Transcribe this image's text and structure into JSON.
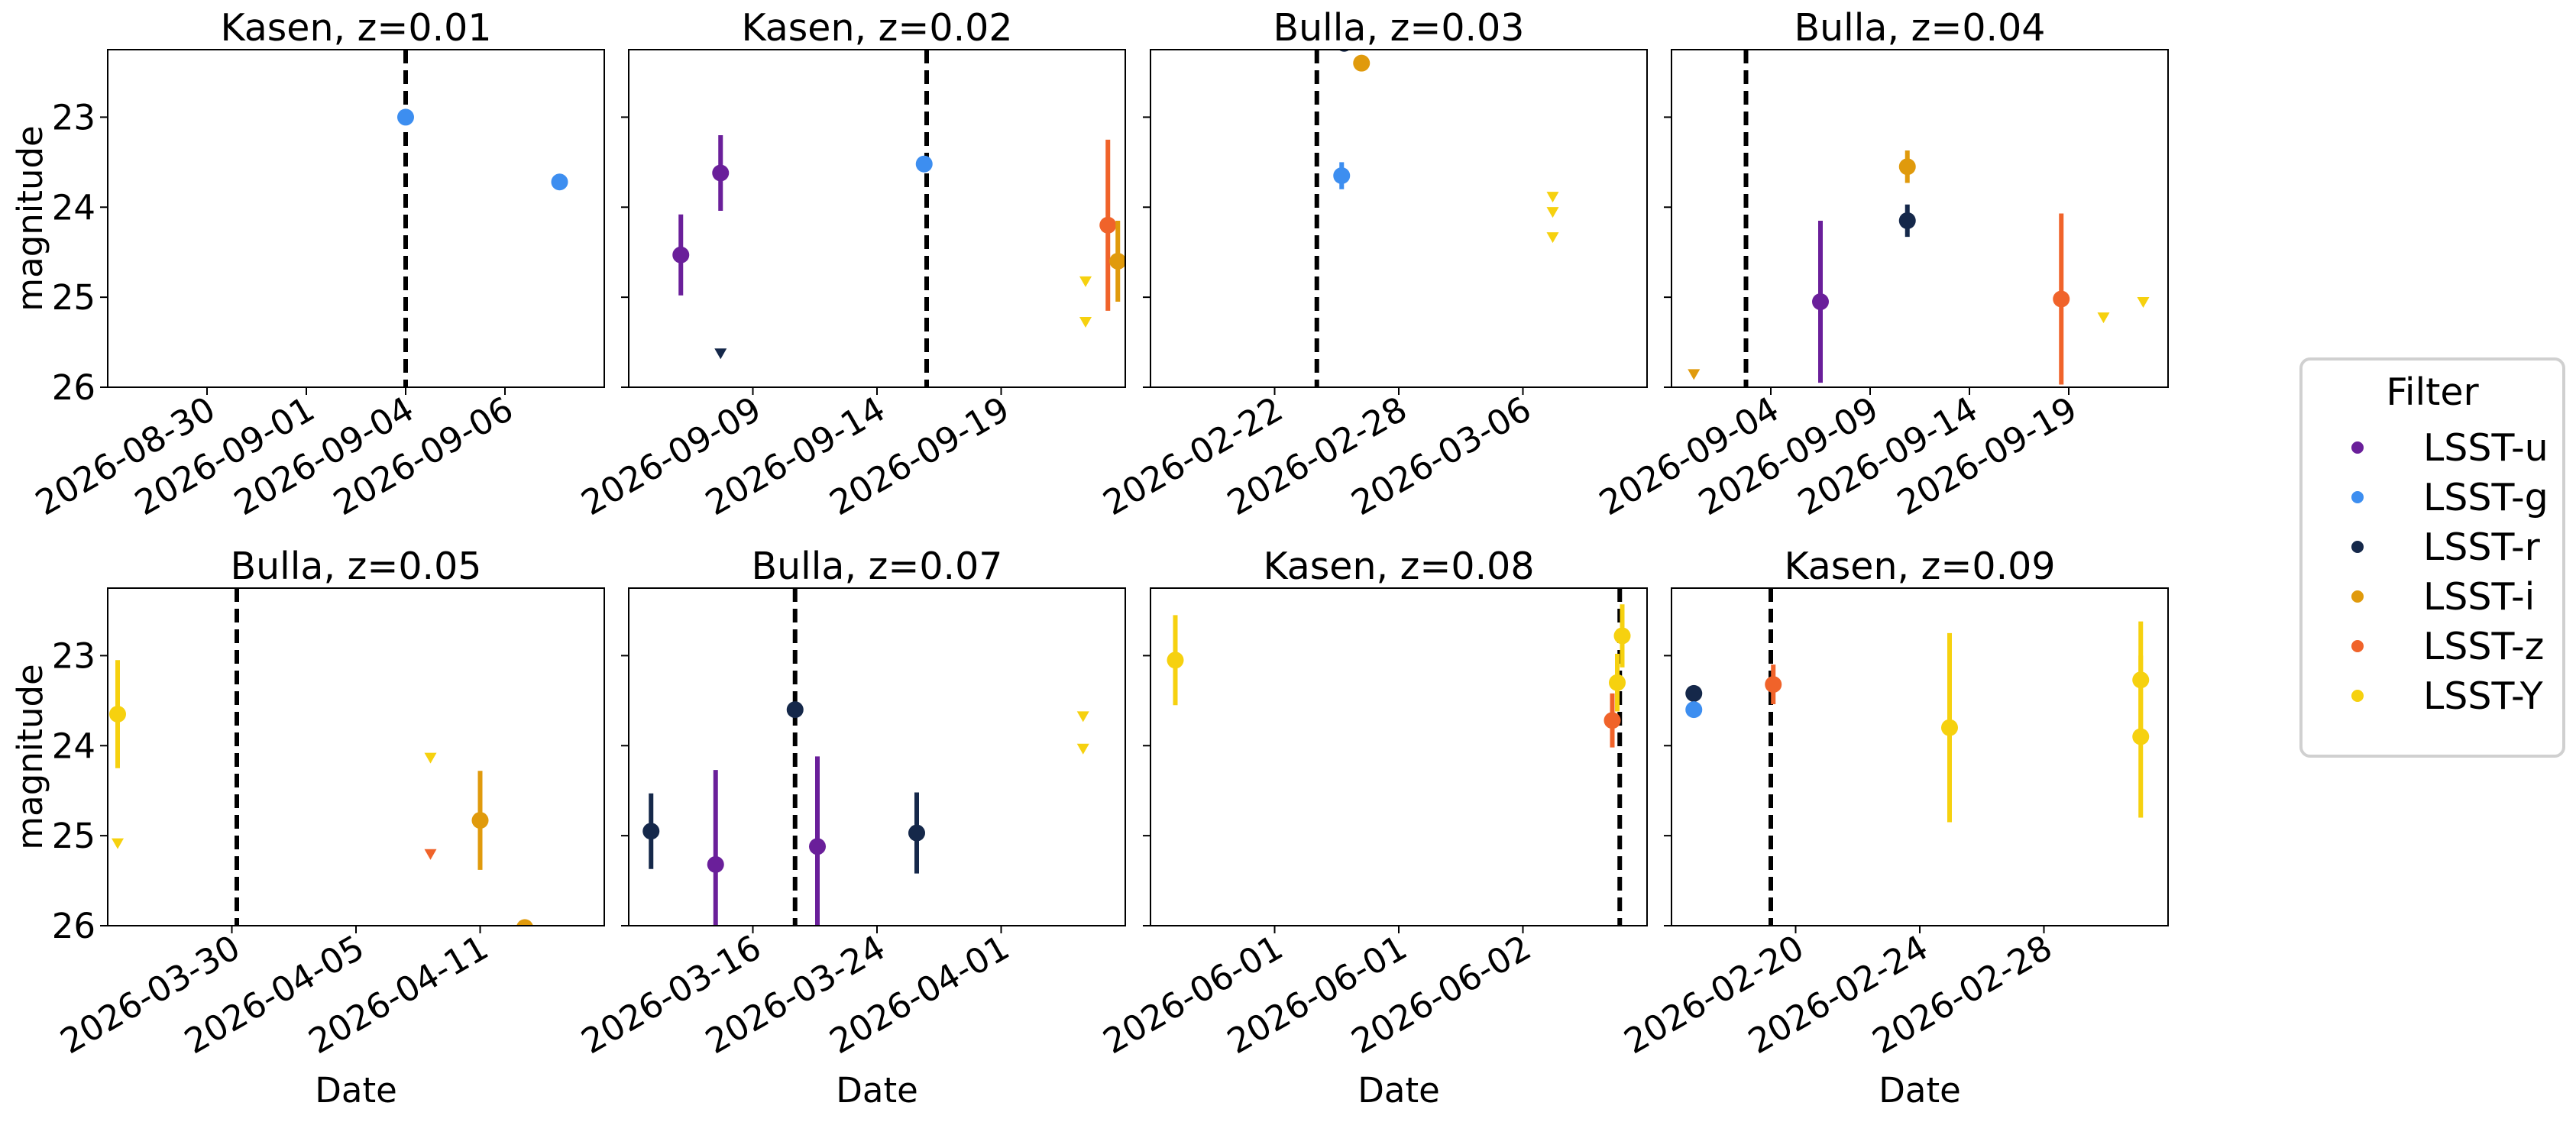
{
  "y_axis": {
    "label": "magnitude",
    "ticks": [
      "23",
      "24",
      "25",
      "26"
    ],
    "range": [
      22.25,
      26.0
    ],
    "inverted": true
  },
  "x_axis_label": "Date",
  "legend": {
    "title": "Filter",
    "placement": "center-right, outside",
    "entries": [
      {
        "name": "LSST-u",
        "color": "#6a1f9a"
      },
      {
        "name": "LSST-g",
        "color": "#3d8ef0"
      },
      {
        "name": "LSST-r",
        "color": "#15284a"
      },
      {
        "name": "LSST-i",
        "color": "#e09a0c"
      },
      {
        "name": "LSST-z",
        "color": "#f0632a"
      },
      {
        "name": "LSST-Y",
        "color": "#f6d10f"
      }
    ]
  },
  "chart_data": [
    {
      "type": "scatter",
      "title": "Kasen, z=0.01",
      "xticks": [
        "2026-08-30",
        "2026-09-01",
        "2026-09-04",
        "2026-09-06"
      ],
      "xlim": [
        -1,
        1
      ],
      "vline": 0.2,
      "points": [
        {
          "filter": "LSST-g",
          "x": 0.2,
          "y": 23.0,
          "err": 0.03
        },
        {
          "filter": "LSST-g",
          "x": 0.82,
          "y": 23.72,
          "err": 0.05
        }
      ]
    },
    {
      "type": "scatter",
      "title": "Kasen, z=0.02",
      "xticks": [
        "2026-09-09",
        "2026-09-14",
        "2026-09-19"
      ],
      "xlim": [
        -1,
        1
      ],
      "vline": 0.2,
      "points": [
        {
          "filter": "LSST-u",
          "x": -0.79,
          "y": 24.53,
          "err": 0.45
        },
        {
          "filter": "LSST-u",
          "x": -0.63,
          "y": 23.62,
          "err": 0.42
        },
        {
          "filter": "LSST-r",
          "x": -0.63,
          "y": 25.62,
          "upper_limit": true
        },
        {
          "filter": "LSST-g",
          "x": 0.19,
          "y": 23.52,
          "err": 0.06
        },
        {
          "filter": "LSST-Y",
          "x": 0.84,
          "y": 24.82,
          "upper_limit": true
        },
        {
          "filter": "LSST-Y",
          "x": 0.84,
          "y": 25.27,
          "upper_limit": true
        },
        {
          "filter": "LSST-z",
          "x": 0.93,
          "y": 24.2,
          "err": 0.95
        },
        {
          "filter": "LSST-i",
          "x": 0.97,
          "y": 24.6,
          "err": 0.45
        }
      ]
    },
    {
      "type": "scatter",
      "title": "Bulla, z=0.03",
      "xticks": [
        "2026-02-22",
        "2026-02-28",
        "2026-03-06"
      ],
      "xlim": [
        -1,
        1
      ],
      "vline": -0.33,
      "points": [
        {
          "filter": "LSST-r",
          "x": -0.22,
          "y": 22.18,
          "err": 0.05
        },
        {
          "filter": "LSST-i",
          "x": -0.15,
          "y": 22.4,
          "err": 0.05
        },
        {
          "filter": "LSST-g",
          "x": -0.23,
          "y": 23.65,
          "err": 0.15
        },
        {
          "filter": "LSST-Y",
          "x": 0.62,
          "y": 23.88,
          "upper_limit": true
        },
        {
          "filter": "LSST-Y",
          "x": 0.62,
          "y": 24.05,
          "upper_limit": true
        },
        {
          "filter": "LSST-Y",
          "x": 0.62,
          "y": 24.33,
          "upper_limit": true
        }
      ]
    },
    {
      "type": "scatter",
      "title": "Bulla, z=0.04",
      "xticks": [
        "2026-09-04",
        "2026-09-09",
        "2026-09-14",
        "2026-09-19"
      ],
      "xlim": [
        -1,
        1
      ],
      "vline": -0.7,
      "points": [
        {
          "filter": "LSST-i",
          "x": -0.91,
          "y": 25.85,
          "upper_limit": true
        },
        {
          "filter": "LSST-u",
          "x": -0.4,
          "y": 25.05,
          "err": 0.9
        },
        {
          "filter": "LSST-r",
          "x": -0.05,
          "y": 24.15,
          "err": 0.18
        },
        {
          "filter": "LSST-i",
          "x": -0.05,
          "y": 23.55,
          "err": 0.18
        },
        {
          "filter": "LSST-z",
          "x": 0.57,
          "y": 25.02,
          "err": 0.95
        },
        {
          "filter": "LSST-Y",
          "x": 0.74,
          "y": 25.22,
          "upper_limit": true
        },
        {
          "filter": "LSST-Y",
          "x": 0.9,
          "y": 25.05,
          "upper_limit": true
        }
      ]
    },
    {
      "type": "scatter",
      "title": "Bulla, z=0.05",
      "xticks": [
        "2026-03-30",
        "2026-04-05",
        "2026-04-11"
      ],
      "xlim": [
        -1,
        1
      ],
      "vline": -0.48,
      "points": [
        {
          "filter": "LSST-Y",
          "x": -0.96,
          "y": 23.65,
          "err": 0.6
        },
        {
          "filter": "LSST-Y",
          "x": -0.96,
          "y": 25.08,
          "upper_limit": true
        },
        {
          "filter": "LSST-Y",
          "x": 0.3,
          "y": 24.13,
          "upper_limit": true
        },
        {
          "filter": "LSST-z",
          "x": 0.3,
          "y": 25.2,
          "upper_limit": true
        },
        {
          "filter": "LSST-i",
          "x": 0.5,
          "y": 24.83,
          "err": 0.55
        },
        {
          "filter": "LSST-i",
          "x": 0.68,
          "y": 26.02,
          "err": 0.03
        }
      ]
    },
    {
      "type": "scatter",
      "title": "Bulla, z=0.07",
      "xticks": [
        "2026-03-16",
        "2026-03-24",
        "2026-04-01"
      ],
      "xlim": [
        -1,
        1
      ],
      "vline": -0.33,
      "points": [
        {
          "filter": "LSST-r",
          "x": -0.91,
          "y": 24.95,
          "err": 0.42
        },
        {
          "filter": "LSST-u",
          "x": -0.65,
          "y": 25.32,
          "err": 1.05
        },
        {
          "filter": "LSST-r",
          "x": -0.33,
          "y": 23.6,
          "err": 0.05
        },
        {
          "filter": "LSST-u",
          "x": -0.24,
          "y": 25.12,
          "err": 1.0
        },
        {
          "filter": "LSST-r",
          "x": 0.16,
          "y": 24.97,
          "err": 0.45
        },
        {
          "filter": "LSST-Y",
          "x": 0.83,
          "y": 23.67,
          "upper_limit": true
        },
        {
          "filter": "LSST-Y",
          "x": 0.83,
          "y": 24.03,
          "upper_limit": true
        }
      ]
    },
    {
      "type": "scatter",
      "title": "Kasen, z=0.08",
      "xticks": [
        "2026-06-01",
        "2026-06-01",
        "2026-06-02"
      ],
      "xlim": [
        -1,
        1
      ],
      "vline": 0.89,
      "points": [
        {
          "filter": "LSST-Y",
          "x": -0.9,
          "y": 23.05,
          "err": 0.5
        },
        {
          "filter": "LSST-z",
          "x": 0.86,
          "y": 23.72,
          "err": 0.3
        },
        {
          "filter": "LSST-Y",
          "x": 0.88,
          "y": 23.3,
          "err": 0.32
        },
        {
          "filter": "LSST-Y",
          "x": 0.9,
          "y": 22.78,
          "err": 0.35
        }
      ]
    },
    {
      "type": "scatter",
      "title": "Kasen, z=0.09",
      "xticks": [
        "2026-02-20",
        "2026-02-24",
        "2026-02-28"
      ],
      "xlim": [
        -1,
        1
      ],
      "vline": -0.6,
      "points": [
        {
          "filter": "LSST-r",
          "x": -0.91,
          "y": 23.42,
          "err": 0.03
        },
        {
          "filter": "LSST-g",
          "x": -0.91,
          "y": 23.6,
          "err": 0.03
        },
        {
          "filter": "LSST-z",
          "x": -0.59,
          "y": 23.32,
          "err": 0.22
        },
        {
          "filter": "LSST-Y",
          "x": 0.12,
          "y": 23.8,
          "err": 1.05
        },
        {
          "filter": "LSST-Y",
          "x": 0.89,
          "y": 23.27,
          "err": 0.65
        },
        {
          "filter": "LSST-Y",
          "x": 0.89,
          "y": 23.9,
          "err": 0.9
        }
      ]
    }
  ]
}
